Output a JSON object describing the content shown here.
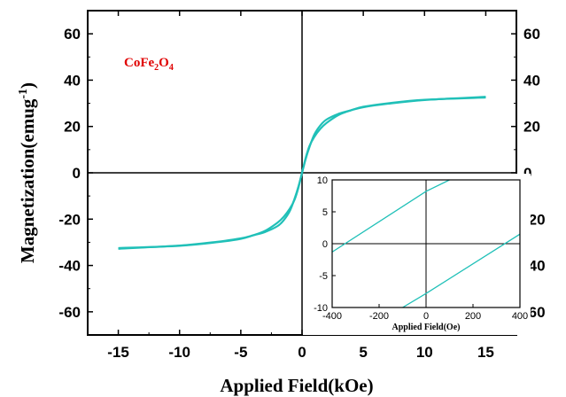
{
  "chart_data": [
    {
      "type": "line",
      "name": "main",
      "xlabel": "Applied Field(kOe)",
      "ylabel": {
        "base": "Magnetization(emug",
        "sup": "-1",
        "close": ")"
      },
      "xlim": [
        -17.5,
        17.5
      ],
      "ylim": [
        -70,
        70
      ],
      "xticks": [
        -15,
        -10,
        -5,
        0,
        5,
        10,
        15
      ],
      "yticks": [
        -60,
        -40,
        -20,
        0,
        20,
        40,
        60
      ],
      "xtick_labels": [
        "-15",
        "-10",
        "-5",
        "0",
        "5",
        "10",
        "15"
      ],
      "ytick_labels": [
        "-60",
        "-40",
        "-20",
        "0",
        "20",
        "40",
        "60"
      ],
      "zero_lines": true,
      "right_axis_labels": true,
      "annotation": {
        "text": "CoFe",
        "sub1": "2",
        "mid": "O",
        "sub2": "4"
      },
      "line_color": "#20c0b8",
      "annotation_color": "#e00000",
      "series": [
        {
          "x": [
            -15,
            -10,
            -7,
            -5,
            -4,
            -3,
            -2,
            -1.5,
            -1,
            -0.6,
            -0.3,
            0,
            0.3,
            0.6,
            1,
            1.5,
            2,
            3,
            4,
            5,
            7,
            10,
            15
          ],
          "y": [
            -32.5,
            -31.5,
            -30,
            -28.5,
            -27,
            -25,
            -21.5,
            -19,
            -15.5,
            -11.5,
            -6.5,
            0,
            6,
            11,
            16.5,
            20.5,
            23,
            25.5,
            27,
            28.3,
            29.8,
            31.4,
            32.8
          ]
        },
        {
          "x": [
            -15,
            -10,
            -7,
            -5,
            -4,
            -3,
            -2,
            -1.5,
            -1,
            -0.6,
            -0.3,
            0,
            0.3,
            0.6,
            1,
            1.5,
            2,
            3,
            4,
            5,
            7,
            10,
            15
          ],
          "y": [
            -32.8,
            -31.4,
            -29.8,
            -28.3,
            -27,
            -25.5,
            -23,
            -20.5,
            -16.5,
            -11,
            -6,
            0,
            6.5,
            11.5,
            15.5,
            19,
            21.5,
            25,
            27,
            28.5,
            30,
            31.5,
            32.5
          ]
        }
      ]
    },
    {
      "type": "line",
      "name": "inset",
      "xlabel": "Applied Field(Oe)",
      "ylabel": "",
      "xlim": [
        -400,
        400
      ],
      "ylim": [
        -10,
        10
      ],
      "xticks": [
        -400,
        -200,
        0,
        200,
        400
      ],
      "yticks": [
        -10,
        -5,
        0,
        5,
        10
      ],
      "xtick_labels": [
        "-400",
        "-200",
        "0",
        "200",
        "400"
      ],
      "ytick_labels": [
        "-10",
        "-5",
        "0",
        "5",
        "10"
      ],
      "zero_lines": true,
      "series": [
        {
          "x": [
            -400,
            0,
            100
          ],
          "y": [
            -1.3,
            8.2,
            10
          ]
        },
        {
          "x": [
            -100,
            0,
            400
          ],
          "y": [
            -10,
            -7.8,
            1.5
          ]
        }
      ]
    }
  ]
}
